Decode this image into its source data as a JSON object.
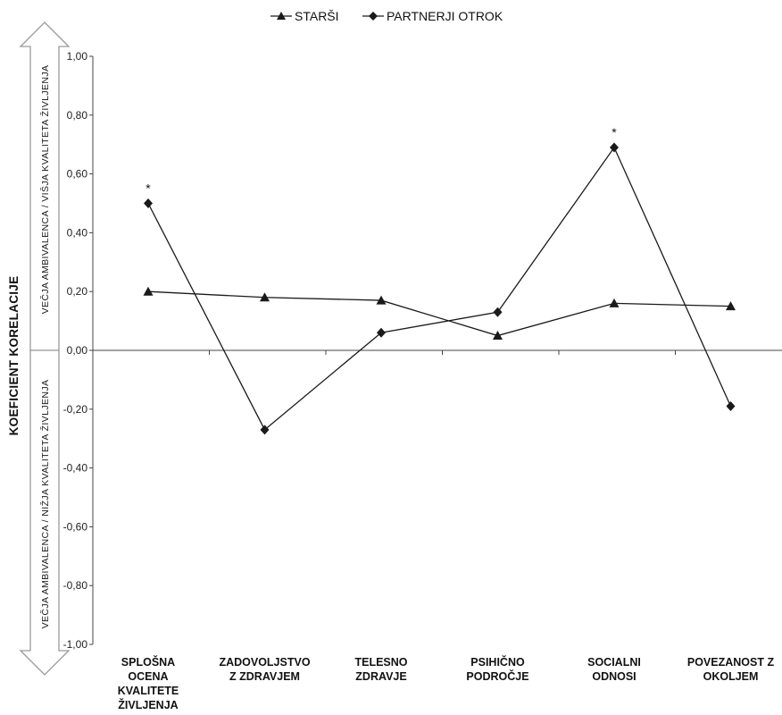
{
  "chart_data": {
    "type": "line",
    "ylabel": "KOEFICIENT KORELACIJE",
    "ylim": [
      -1.0,
      1.0
    ],
    "yticks": [
      "1,00",
      "0,80",
      "0,60",
      "0,40",
      "0,20",
      "0,00",
      "-0,20",
      "-0,40",
      "-0,60",
      "-0,80",
      "-1,00"
    ],
    "ytick_values": [
      1.0,
      0.8,
      0.6,
      0.4,
      0.2,
      0.0,
      -0.2,
      -0.4,
      -0.6,
      -0.8,
      -1.0
    ],
    "categories": [
      [
        "SPLOŠNA",
        "OCENA",
        "KVALITETE",
        "ŽIVLJENJA"
      ],
      [
        "ZADOVOLJSTVO",
        "Z ZDRAVJEM"
      ],
      [
        "TELESNO",
        "ZDRAVJE"
      ],
      [
        "PSIHIČNO",
        "PODROČJE"
      ],
      [
        "SOCIALNI",
        "ODNOSI"
      ],
      [
        "POVEZANOST Z",
        "OKOLJEM"
      ]
    ],
    "series": [
      {
        "name": "STARŠI",
        "marker": "triangle",
        "values": [
          0.2,
          0.18,
          0.17,
          0.05,
          0.16,
          0.15
        ]
      },
      {
        "name": "PARTNERJI OTROK",
        "marker": "diamond",
        "values": [
          0.5,
          -0.27,
          0.06,
          0.13,
          0.69,
          -0.19
        ]
      }
    ],
    "annotations": [
      {
        "text": "*",
        "series": 1,
        "category_index": 0
      },
      {
        "text": "*",
        "series": 1,
        "category_index": 4
      }
    ],
    "arrow_labels": {
      "up": "VEČJA AMBIVALENCA / VIŠJA KVALITETA ŽIVLJENJA",
      "down": "VEČJA AMBIVALENCA / NIŽJA KVALITETA ŽIVLJENJA"
    },
    "legend_position": "top-center",
    "grid": false
  },
  "colors": {
    "line": "#1a1a1a",
    "axis": "#444444",
    "arrow_fill": "#ffffff",
    "arrow_stroke": "#9a9a9a"
  }
}
